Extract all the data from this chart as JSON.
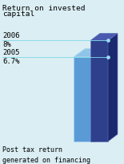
{
  "title_line1": "Return on invested",
  "title_line2": "capital",
  "subtitle": "Post tax return\ngenerated on financing\nprovided by shareholders.",
  "bars": [
    {
      "year": "2006",
      "value": 8.0,
      "label": "8%"
    },
    {
      "year": "2005",
      "value": 6.7,
      "label": "6.7%"
    }
  ],
  "light_bar_front": "#5b9bd5",
  "light_bar_side": "#3a75b0",
  "light_bar_top": "#8ec4e8",
  "light_bar_edge": "#a8d4f0",
  "dark_bar_front": "#2e3f8c",
  "dark_bar_side": "#1a2870",
  "dark_bar_top": "#4a5aaf",
  "dark_bar_edge": "#6070b8",
  "background_color": "#daeef3",
  "title_fontsize": 6.8,
  "label_fontsize": 6.5,
  "subtitle_fontsize": 6.0,
  "line_color": "#80d8e8",
  "dot_color": "#90e0f0",
  "text_color": "#000000",
  "y_max": 10.0,
  "y_min": 0.0
}
